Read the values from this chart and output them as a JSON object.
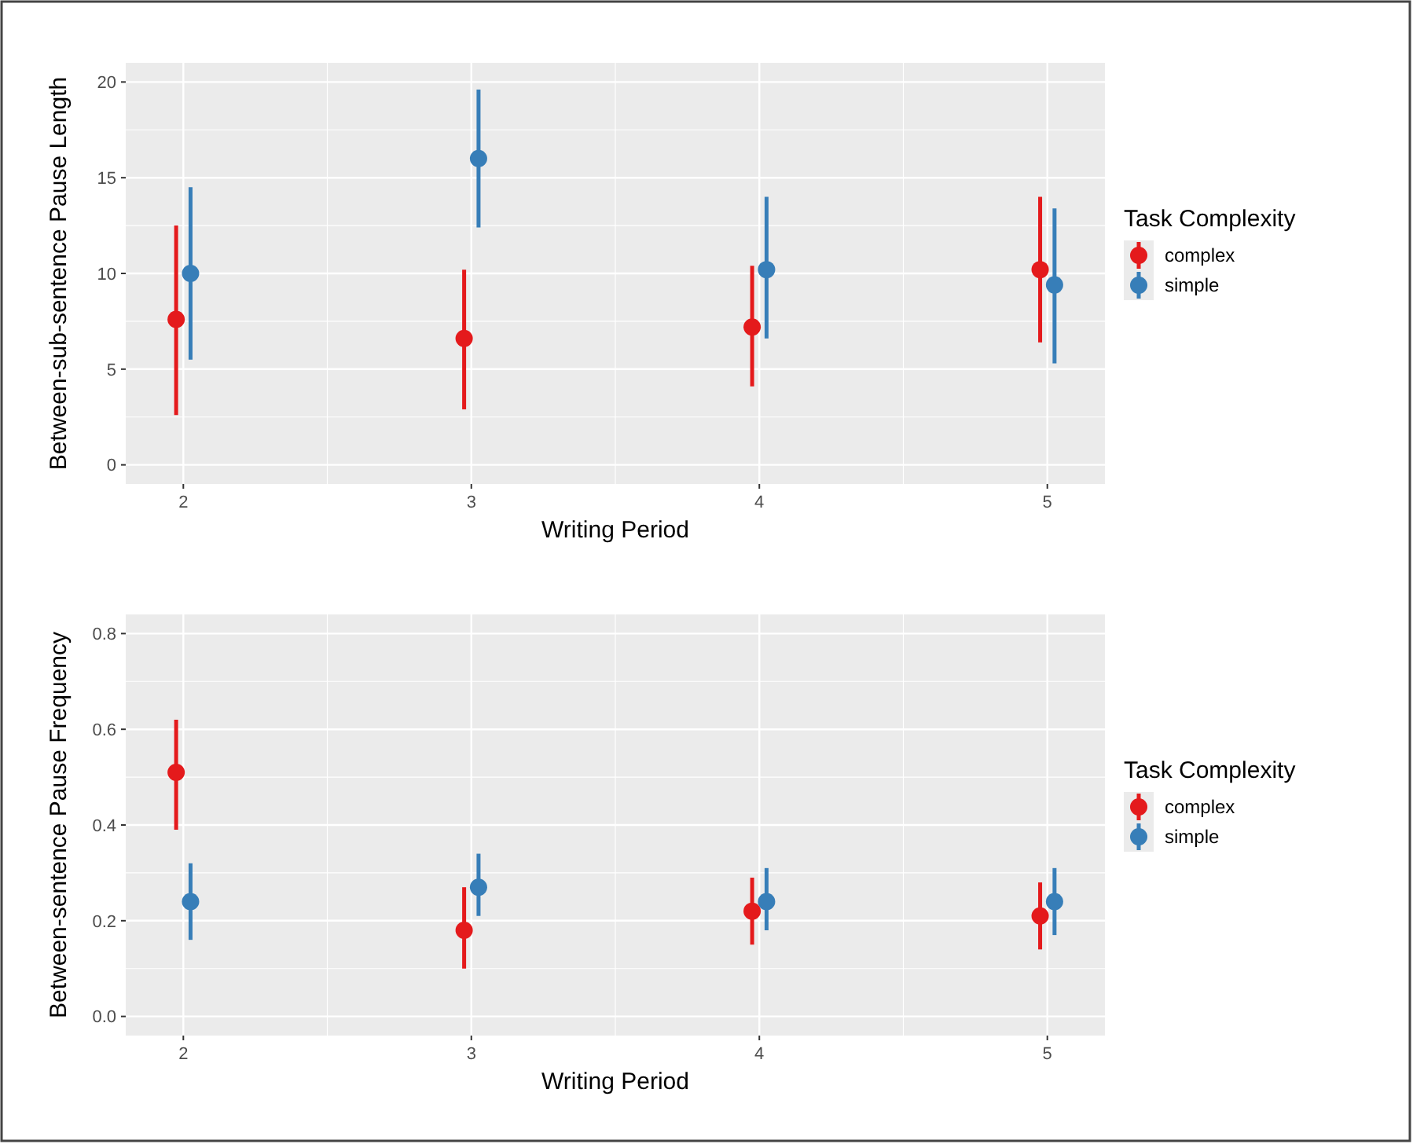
{
  "chart_data": [
    {
      "type": "scatter",
      "xlabel": "Writing Period",
      "ylabel": "Between-sub-sentence Pause Length",
      "legend_title": "Task Complexity",
      "xlim": [
        1.8,
        5.2
      ],
      "xticks": [
        2,
        3,
        4,
        5
      ],
      "ylim": [
        -1,
        21
      ],
      "yticks": [
        0,
        5,
        10,
        15,
        20
      ],
      "grid": true,
      "legend": "right",
      "marker": "circle",
      "series": [
        {
          "name": "complex",
          "color": "#e41a1c",
          "x": [
            1.975,
            2.975,
            3.975,
            4.975
          ],
          "values": [
            7.6,
            6.6,
            7.2,
            10.2
          ],
          "errors": [
            [
              2.6,
              12.5
            ],
            [
              2.9,
              10.2
            ],
            [
              4.1,
              10.4
            ],
            [
              6.4,
              14.0
            ]
          ]
        },
        {
          "name": "simple",
          "color": "#377eb8",
          "x": [
            2.025,
            3.025,
            4.025,
            5.025
          ],
          "values": [
            10.0,
            16.0,
            10.2,
            9.4
          ],
          "errors": [
            [
              5.5,
              14.5
            ],
            [
              12.4,
              19.6
            ],
            [
              6.6,
              14.0
            ],
            [
              5.3,
              13.4
            ]
          ]
        }
      ]
    },
    {
      "type": "scatter",
      "xlabel": "Writing Period",
      "ylabel": "Between-sentence Pause Frequency",
      "legend_title": "Task Complexity",
      "xlim": [
        1.8,
        5.2
      ],
      "xticks": [
        2,
        3,
        4,
        5
      ],
      "ylim": [
        -0.04,
        0.84
      ],
      "yticks": [
        {
          "value": 0,
          "label": "0.0"
        },
        0.2,
        0.4,
        0.6,
        0.8
      ],
      "grid": true,
      "legend": "right",
      "marker": "circle",
      "series": [
        {
          "name": "complex",
          "color": "#e41a1c",
          "x": [
            1.975,
            2.975,
            3.975,
            4.975
          ],
          "values": [
            0.51,
            0.18,
            0.22,
            0.21
          ],
          "errors": [
            [
              0.39,
              0.62
            ],
            [
              0.1,
              0.27
            ],
            [
              0.15,
              0.29
            ],
            [
              0.14,
              0.28
            ]
          ]
        },
        {
          "name": "simple",
          "color": "#377eb8",
          "x": [
            2.025,
            3.025,
            4.025,
            5.025
          ],
          "values": [
            0.24,
            0.27,
            0.24,
            0.24
          ],
          "errors": [
            [
              0.16,
              0.32
            ],
            [
              0.21,
              0.34
            ],
            [
              0.18,
              0.31
            ],
            [
              0.17,
              0.31
            ]
          ]
        }
      ]
    }
  ]
}
